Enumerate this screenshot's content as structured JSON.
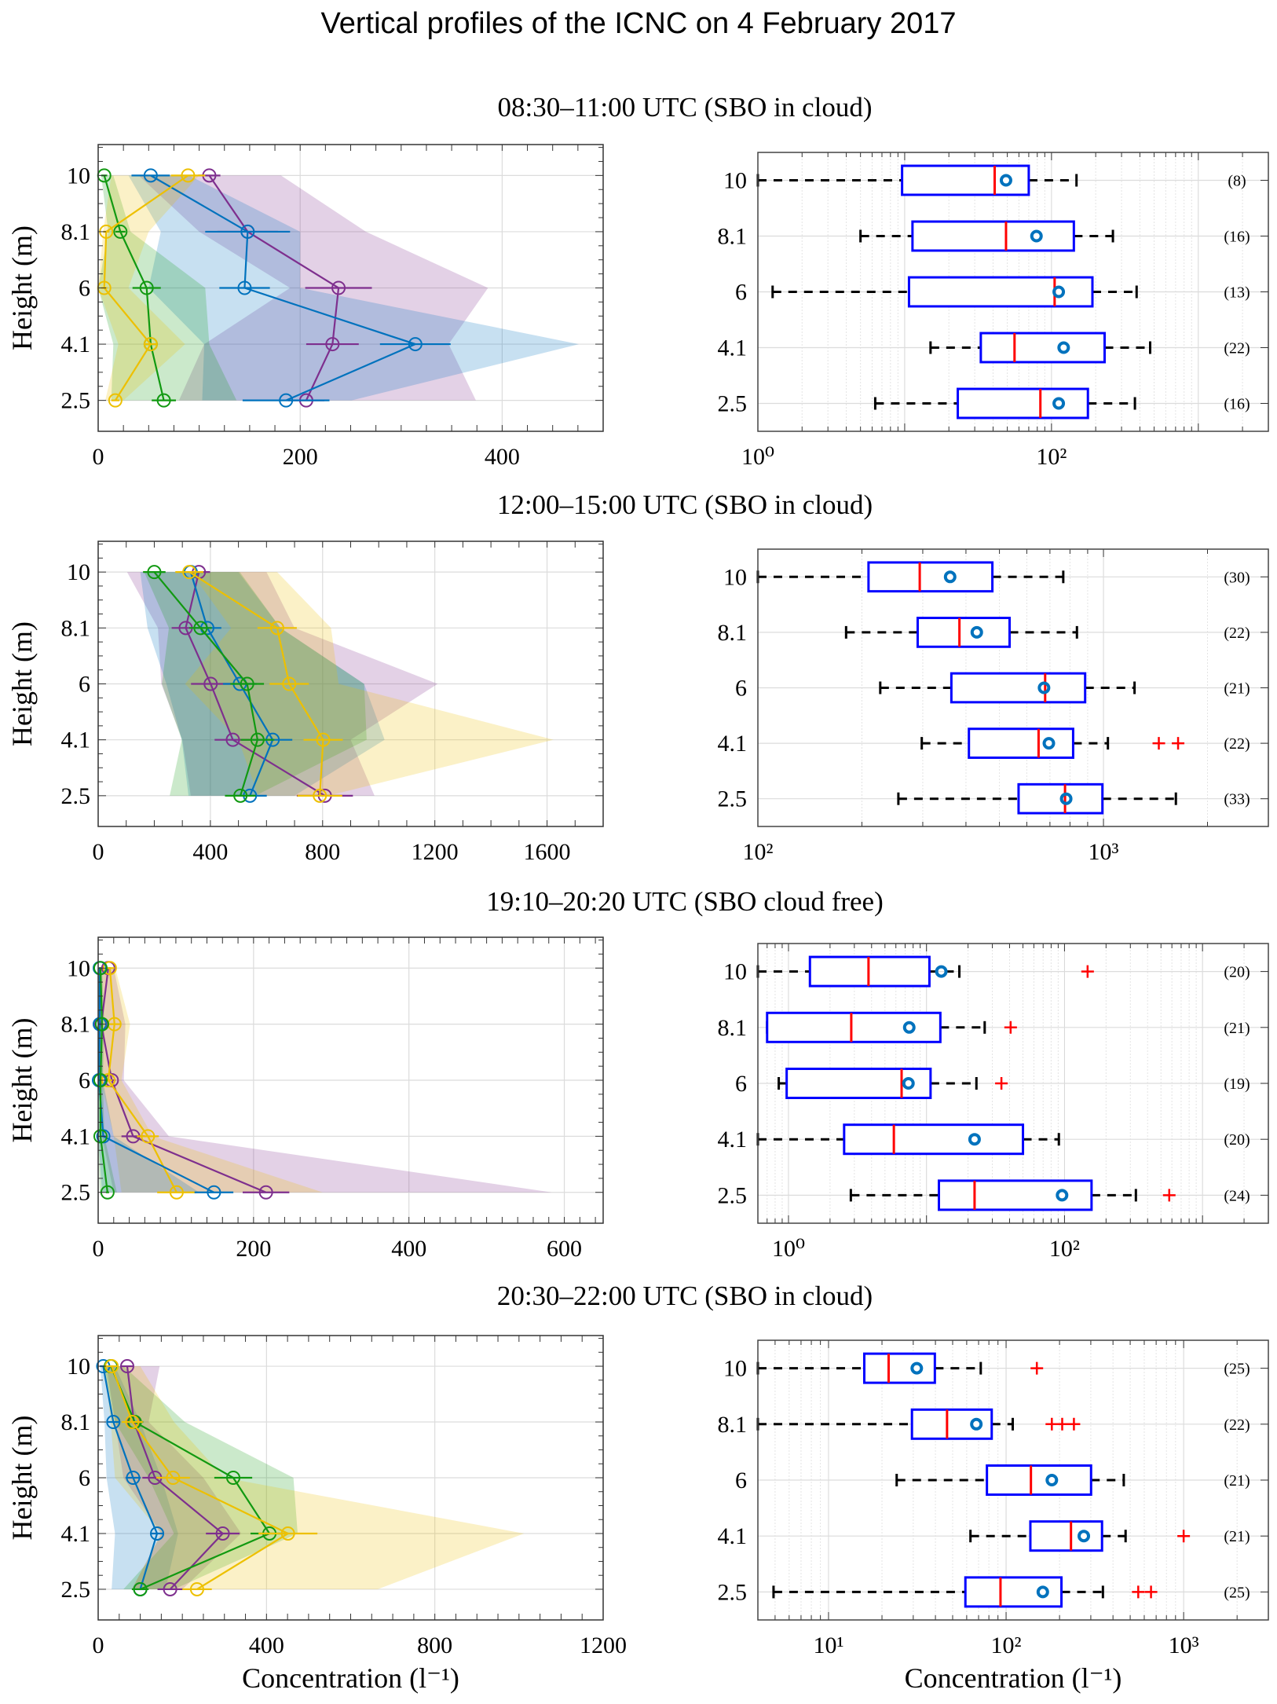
{
  "title": "Vertical profiles of the ICNC on 4 February 2017",
  "chart_data": [
    {
      "type": "line",
      "panel": "profile",
      "title": "08:30–11:00 UTC (SBO in cloud)",
      "ylabel": "Height (m)",
      "xlabel": "",
      "heights": [
        "10",
        "8.1",
        "6",
        "4.1",
        "2.5"
      ],
      "xlim": [
        0,
        500
      ],
      "xticks": [
        0,
        200,
        400
      ],
      "xtick_labels": [
        "0",
        "200",
        "400"
      ],
      "minor_step": 25,
      "grid": true,
      "series": [
        {
          "color": "#7E2F8E",
          "values": [
            110,
            148,
            238,
            232,
            206
          ],
          "xerr": [
            11,
            30,
            33,
            26,
            18
          ],
          "band_lo": [
            40,
            100,
            190,
            105,
            80
          ],
          "band_hi": [
            181,
            265,
            386,
            347,
            374
          ]
        },
        {
          "color": "#0072BD",
          "values": [
            52,
            148,
            145,
            314,
            186
          ],
          "xerr": [
            19,
            42,
            25,
            35,
            43
          ],
          "band_lo": [
            30,
            62,
            50,
            105,
            103
          ],
          "band_hi": [
            90,
            200,
            200,
            476,
            251
          ]
        },
        {
          "color": "#119911",
          "values": [
            6,
            22,
            48,
            52,
            65
          ],
          "xerr": [
            3,
            5,
            14,
            6,
            12
          ],
          "band_lo": [
            3,
            10,
            0,
            15,
            13
          ],
          "band_hi": [
            15,
            32,
            106,
            110,
            137
          ]
        },
        {
          "color": "#EDC000",
          "values": [
            89,
            8,
            6,
            52,
            17
          ],
          "xerr": [
            17,
            3,
            3,
            6,
            4
          ],
          "band_lo": [
            13,
            5,
            0,
            20,
            7
          ],
          "band_hi": [
            100,
            50,
            30,
            86,
            25
          ]
        }
      ]
    },
    {
      "type": "box",
      "panel": "boxplot",
      "heights": [
        "10",
        "8.1",
        "6",
        "4.1",
        "2.5"
      ],
      "xscale": "log",
      "xlim": [
        1,
        3000
      ],
      "xticks": [
        1,
        100
      ],
      "xtick_labels": [
        "10⁰",
        "10²"
      ],
      "xlabel": "",
      "boxes": [
        {
          "whisker_lo": 1,
          "q1": 9.6,
          "median": 41,
          "mean": 49,
          "q3": 70,
          "whisker_hi": 148,
          "outliers": [],
          "n": "(8)"
        },
        {
          "whisker_lo": 5,
          "q1": 11.3,
          "median": 49,
          "mean": 79,
          "q3": 142,
          "whisker_hi": 262,
          "outliers": [],
          "n": "(16)"
        },
        {
          "whisker_lo": 1.26,
          "q1": 10.7,
          "median": 105,
          "mean": 112,
          "q3": 190,
          "whisker_hi": 380,
          "outliers": [],
          "n": "(13)"
        },
        {
          "whisker_lo": 15,
          "q1": 33,
          "median": 56,
          "mean": 121,
          "q3": 230,
          "whisker_hi": 470,
          "outliers": [],
          "n": "(22)"
        },
        {
          "whisker_lo": 6.3,
          "q1": 23,
          "median": 84,
          "mean": 112,
          "q3": 177,
          "whisker_hi": 370,
          "outliers": [],
          "n": "(16)"
        }
      ]
    },
    {
      "type": "line",
      "panel": "profile",
      "title": "12:00–15:00 UTC (SBO in cloud)",
      "ylabel": "Height (m)",
      "xlabel": "",
      "heights": [
        "10",
        "8.1",
        "6",
        "4.1",
        "2.5"
      ],
      "xlim": [
        0,
        1800
      ],
      "xticks": [
        0,
        400,
        800,
        1200,
        1600
      ],
      "xtick_labels": [
        "0",
        "400",
        "800",
        "1200",
        "1600"
      ],
      "minor_step": 100,
      "grid": true,
      "series": [
        {
          "color": "#7E2F8E",
          "values": [
            359,
            312,
            401,
            480,
            808
          ],
          "xerr": [
            40,
            50,
            70,
            65,
            100
          ],
          "band_lo": [
            103,
            213,
            225,
            300,
            330
          ],
          "band_hi": [
            600,
            700,
            1210,
            900,
            985
          ]
        },
        {
          "color": "#0072BD",
          "values": [
            330,
            389,
            505,
            622,
            541
          ],
          "xerr": [
            40,
            50,
            60,
            70,
            60
          ],
          "band_lo": [
            150,
            176,
            243,
            298,
            322
          ],
          "band_hi": [
            500,
            650,
            948,
            1021,
            700
          ]
        },
        {
          "color": "#119911",
          "values": [
            200,
            365,
            531,
            568,
            507
          ],
          "xerr": [
            40,
            40,
            60,
            60,
            55
          ],
          "band_lo": [
            164,
            252,
            227,
            298,
            255
          ],
          "band_hi": [
            505,
            650,
            948,
            957,
            560
          ]
        },
        {
          "color": "#EDC000",
          "values": [
            325,
            638,
            681,
            802,
            790
          ],
          "xerr": [
            50,
            70,
            70,
            70,
            80
          ],
          "band_lo": [
            330,
            474,
            310,
            500,
            571
          ],
          "band_hi": [
            638,
            830,
            857,
            1623,
            820
          ]
        }
      ]
    },
    {
      "type": "box",
      "panel": "boxplot",
      "heights": [
        "10",
        "8.1",
        "6",
        "4.1",
        "2.5"
      ],
      "xscale": "log",
      "xlim": [
        100,
        3000
      ],
      "xticks": [
        100,
        1000
      ],
      "xtick_labels": [
        "10²",
        "10³"
      ],
      "xlabel": "",
      "boxes": [
        {
          "whisker_lo": 100,
          "q1": 209,
          "median": 294,
          "mean": 360,
          "q3": 477,
          "whisker_hi": 765,
          "outliers": [],
          "n": "(30)"
        },
        {
          "whisker_lo": 180,
          "q1": 290,
          "median": 383,
          "mean": 430,
          "q3": 535,
          "whisker_hi": 838,
          "outliers": [],
          "n": "(22)"
        },
        {
          "whisker_lo": 226,
          "q1": 363,
          "median": 678,
          "mean": 673,
          "q3": 885,
          "whisker_hi": 1230,
          "outliers": [],
          "n": "(21)"
        },
        {
          "whisker_lo": 298,
          "q1": 408,
          "median": 649,
          "mean": 695,
          "q3": 817,
          "whisker_hi": 1030,
          "outliers": [
            1446,
            1644
          ],
          "n": "(22)"
        },
        {
          "whisker_lo": 255,
          "q1": 568,
          "median": 774,
          "mean": 780,
          "q3": 993,
          "whisker_hi": 1620,
          "outliers": [],
          "n": "(33)"
        }
      ]
    },
    {
      "type": "line",
      "panel": "profile",
      "title": "19:10–20:20 UTC (SBO cloud free)",
      "ylabel": "Height (m)",
      "xlabel": "",
      "heights": [
        "10",
        "8.1",
        "6",
        "4.1",
        "2.5"
      ],
      "xlim": [
        0,
        650
      ],
      "xticks": [
        0,
        200,
        400,
        600
      ],
      "xtick_labels": [
        "0",
        "200",
        "400",
        "600"
      ],
      "minor_step": 20,
      "grid": true,
      "series": [
        {
          "color": "#7E2F8E",
          "values": [
            13,
            4,
            17.5,
            45,
            216
          ],
          "xerr": [
            3,
            2,
            5,
            15,
            30
          ],
          "band_lo": [
            0,
            0,
            0,
            5,
            20
          ],
          "band_hi": [
            20,
            35,
            33,
            91,
            584
          ]
        },
        {
          "color": "#EDC000",
          "values": [
            15,
            21,
            13,
            64,
            101
          ],
          "xerr": [
            6,
            8,
            5,
            14,
            25
          ],
          "band_lo": [
            5,
            5,
            3,
            20,
            30
          ],
          "band_hi": [
            22,
            41,
            30,
            70,
            289
          ]
        },
        {
          "color": "#0072BD",
          "values": [
            2,
            2,
            1,
            6.6,
            149
          ],
          "xerr": [
            1,
            1,
            1,
            3,
            25
          ],
          "band_lo": [
            0,
            0,
            0,
            0,
            5
          ],
          "band_hi": [
            4,
            5,
            6,
            20,
            130
          ]
        },
        {
          "color": "#119911",
          "values": [
            3,
            5,
            3,
            3,
            12
          ],
          "xerr": [
            1,
            1,
            1,
            1,
            2
          ],
          "band_lo": [
            0,
            0,
            0,
            0,
            2
          ],
          "band_hi": [
            5,
            8,
            6,
            8,
            24
          ]
        }
      ]
    },
    {
      "type": "box",
      "panel": "boxplot",
      "heights": [
        "10",
        "8.1",
        "6",
        "4.1",
        "2.5"
      ],
      "xscale": "log",
      "xlim": [
        0.6,
        3000
      ],
      "xticks": [
        1,
        100
      ],
      "xtick_labels": [
        "10⁰",
        "10²"
      ],
      "xlabel": "",
      "boxes": [
        {
          "whisker_lo": 0.6,
          "q1": 1.43,
          "median": 3.8,
          "mean": 12.8,
          "q3": 10.5,
          "whisker_hi": 17.3,
          "outliers": [
            147
          ],
          "n": "(20)"
        },
        {
          "whisker_lo": 0.7,
          "q1": 0.7,
          "median": 2.85,
          "mean": 7.5,
          "q3": 12.6,
          "whisker_hi": 26.4,
          "outliers": [
            40.7
          ],
          "n": "(21)"
        },
        {
          "whisker_lo": 0.85,
          "q1": 0.97,
          "median": 6.6,
          "mean": 7.4,
          "q3": 10.7,
          "whisker_hi": 23,
          "outliers": [
            34.9
          ],
          "n": "(19)"
        },
        {
          "whisker_lo": 0.6,
          "q1": 2.53,
          "median": 5.8,
          "mean": 22.3,
          "q3": 50,
          "whisker_hi": 91,
          "outliers": [],
          "n": "(20)"
        },
        {
          "whisker_lo": 2.83,
          "q1": 12.3,
          "median": 22.3,
          "mean": 96,
          "q3": 157,
          "whisker_hi": 329,
          "outliers": [
            574
          ],
          "n": "(24)"
        }
      ]
    },
    {
      "type": "line",
      "panel": "profile",
      "title": "20:30–22:00 UTC (SBO in cloud)",
      "ylabel": "Height (m)",
      "xlabel": "Concentration (l⁻¹)",
      "heights": [
        "10",
        "8.1",
        "6",
        "4.1",
        "2.5"
      ],
      "xlim": [
        0,
        1200
      ],
      "xticks": [
        0,
        400,
        800,
        1200
      ],
      "xtick_labels": [
        "0",
        "400",
        "800",
        "1200"
      ],
      "minor_step": 50,
      "grid": true,
      "series": [
        {
          "color": "#0072BD",
          "values": [
            12,
            36,
            83,
            140,
            100
          ],
          "xerr": [
            8,
            15,
            18,
            15,
            10
          ],
          "band_lo": [
            5,
            15,
            20,
            40,
            32
          ],
          "band_hi": [
            40,
            100,
            150,
            190,
            160
          ]
        },
        {
          "color": "#7E2F8E",
          "values": [
            69,
            85,
            135,
            296,
            171
          ],
          "xerr": [
            15,
            20,
            30,
            40,
            30
          ],
          "band_lo": [
            20,
            40,
            60,
            150,
            80
          ],
          "band_hi": [
            146,
            120,
            250,
            340,
            200
          ]
        },
        {
          "color": "#119911",
          "values": [
            30,
            87,
            321,
            407,
            100
          ],
          "xerr": [
            5,
            20,
            45,
            45,
            20
          ],
          "band_lo": [
            15,
            40,
            120,
            180,
            60
          ],
          "band_hi": [
            60,
            206,
            464,
            474,
            180
          ]
        },
        {
          "color": "#EDC000",
          "values": [
            32,
            81,
            178,
            451,
            235
          ],
          "xerr": [
            15,
            25,
            40,
            70,
            35
          ],
          "band_lo": [
            15,
            30,
            40,
            150,
            80
          ],
          "band_hi": [
            100,
            180,
            300,
            1012,
            664
          ]
        }
      ]
    },
    {
      "type": "box",
      "panel": "boxplot",
      "heights": [
        "10",
        "8.1",
        "6",
        "4.1",
        "2.5"
      ],
      "xscale": "log",
      "xlim": [
        4,
        3000
      ],
      "xticks": [
        10,
        100,
        1000
      ],
      "xtick_labels": [
        "10¹",
        "10²",
        "10³"
      ],
      "xlabel": "Concentration (l⁻¹)",
      "boxes": [
        {
          "whisker_lo": 4,
          "q1": 15.9,
          "median": 21.8,
          "mean": 31.4,
          "q3": 39.7,
          "whisker_hi": 72,
          "outliers": [
            149
          ],
          "n": "(25)"
        },
        {
          "whisker_lo": 4,
          "q1": 29.5,
          "median": 46.5,
          "mean": 68,
          "q3": 83,
          "whisker_hi": 109,
          "outliers": [
            181,
            207,
            241
          ],
          "n": "(22)"
        },
        {
          "whisker_lo": 24.2,
          "q1": 78,
          "median": 138,
          "mean": 181,
          "q3": 301,
          "whisker_hi": 460,
          "outliers": [],
          "n": "(21)"
        },
        {
          "whisker_lo": 63,
          "q1": 137,
          "median": 232,
          "mean": 274,
          "q3": 347,
          "whisker_hi": 471,
          "outliers": [
            1000
          ],
          "n": "(21)"
        },
        {
          "whisker_lo": 4.9,
          "q1": 59,
          "median": 93,
          "mean": 161,
          "q3": 205,
          "whisker_hi": 351,
          "outliers": [
            555,
            655
          ],
          "n": "(25)"
        }
      ]
    }
  ]
}
